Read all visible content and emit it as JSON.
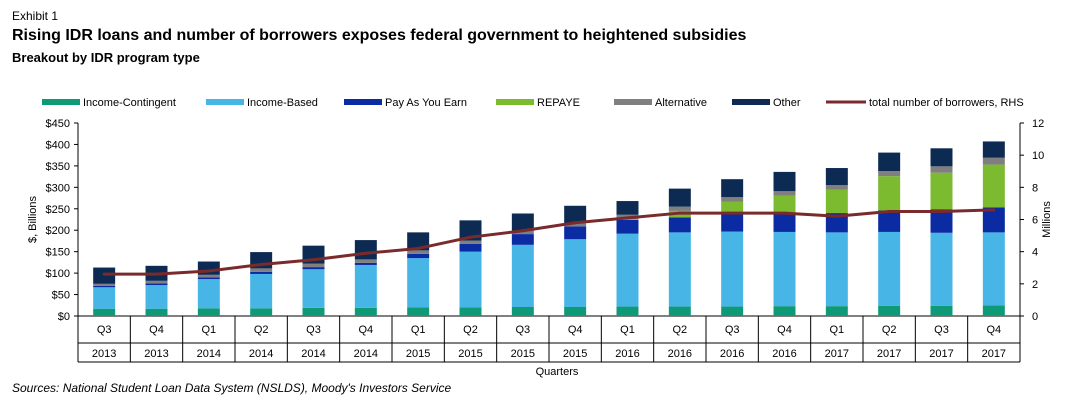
{
  "exhibit": "Exhibit 1",
  "title": "Rising IDR loans and number of borrowers exposes federal government to heightened subsidies",
  "subtitle": "Breakout by IDR program type",
  "source": "Sources: National Student Loan Data System (NSLDS), Moody's Investors Service",
  "chart_data": {
    "type": "bar",
    "stacked": true,
    "title": "Rising IDR loans and number of borrowers exposes federal government to heightened subsidies",
    "subtitle": "Breakout by IDR program type",
    "xlabel": "Quarters",
    "ylabel": "$, Billions",
    "y2label": "Millions",
    "ylim": [
      0,
      450
    ],
    "y2lim": [
      0,
      12
    ],
    "yticks": [
      "$0",
      "$50",
      "$100",
      "$150",
      "$200",
      "$250",
      "$300",
      "$350",
      "$400",
      "$450"
    ],
    "y2ticks": [
      "0",
      "2",
      "4",
      "6",
      "8",
      "10",
      "12"
    ],
    "categories": [
      "Q3",
      "Q4",
      "Q1",
      "Q2",
      "Q3",
      "Q4",
      "Q1",
      "Q2",
      "Q3",
      "Q4",
      "Q1",
      "Q2",
      "Q3",
      "Q4",
      "Q1",
      "Q2",
      "Q3",
      "Q4"
    ],
    "years": [
      "2013",
      "2013",
      "2014",
      "2014",
      "2014",
      "2014",
      "2015",
      "2015",
      "2015",
      "2015",
      "2016",
      "2016",
      "2016",
      "2016",
      "2017",
      "2017",
      "2017",
      "2017"
    ],
    "legend_position": "top",
    "series": [
      {
        "name": "Income-Contingent",
        "color": "#0f9a77",
        "values": [
          17,
          17,
          18,
          18,
          19,
          19,
          20,
          20,
          21,
          21,
          22,
          22,
          22,
          23,
          23,
          24,
          24,
          25
        ]
      },
      {
        "name": "Income-Based",
        "color": "#47b5e6",
        "values": [
          50,
          55,
          68,
          80,
          90,
          100,
          115,
          130,
          145,
          158,
          170,
          173,
          175,
          173,
          172,
          172,
          170,
          170
        ]
      },
      {
        "name": "Pay As You Earn",
        "color": "#0b2ba3",
        "values": [
          3,
          4,
          4,
          5,
          5,
          5,
          10,
          18,
          25,
          30,
          32,
          35,
          40,
          45,
          45,
          50,
          55,
          58
        ]
      },
      {
        "name": "REPAYE",
        "color": "#7cbb2f",
        "values": [
          0,
          0,
          0,
          0,
          0,
          0,
          0,
          0,
          0,
          0,
          2,
          15,
          30,
          40,
          55,
          80,
          85,
          100
        ]
      },
      {
        "name": "Alternative",
        "color": "#7f7f7f",
        "values": [
          5,
          6,
          6,
          8,
          8,
          8,
          8,
          8,
          8,
          8,
          10,
          10,
          10,
          10,
          10,
          12,
          15,
          16
        ]
      },
      {
        "name": "Other",
        "color": "#0d2a52",
        "values": [
          38,
          35,
          31,
          38,
          42,
          45,
          42,
          47,
          40,
          40,
          32,
          42,
          42,
          45,
          40,
          43,
          42,
          38
        ]
      }
    ],
    "line_series": {
      "name": "total number of borrowers, RHS",
      "color": "#7a2a2b",
      "axis": "right",
      "values": [
        2.6,
        2.6,
        2.8,
        3.2,
        3.5,
        3.9,
        4.2,
        4.9,
        5.3,
        5.8,
        6.1,
        6.4,
        6.4,
        6.4,
        6.2,
        6.5,
        6.5,
        6.6
      ]
    }
  }
}
